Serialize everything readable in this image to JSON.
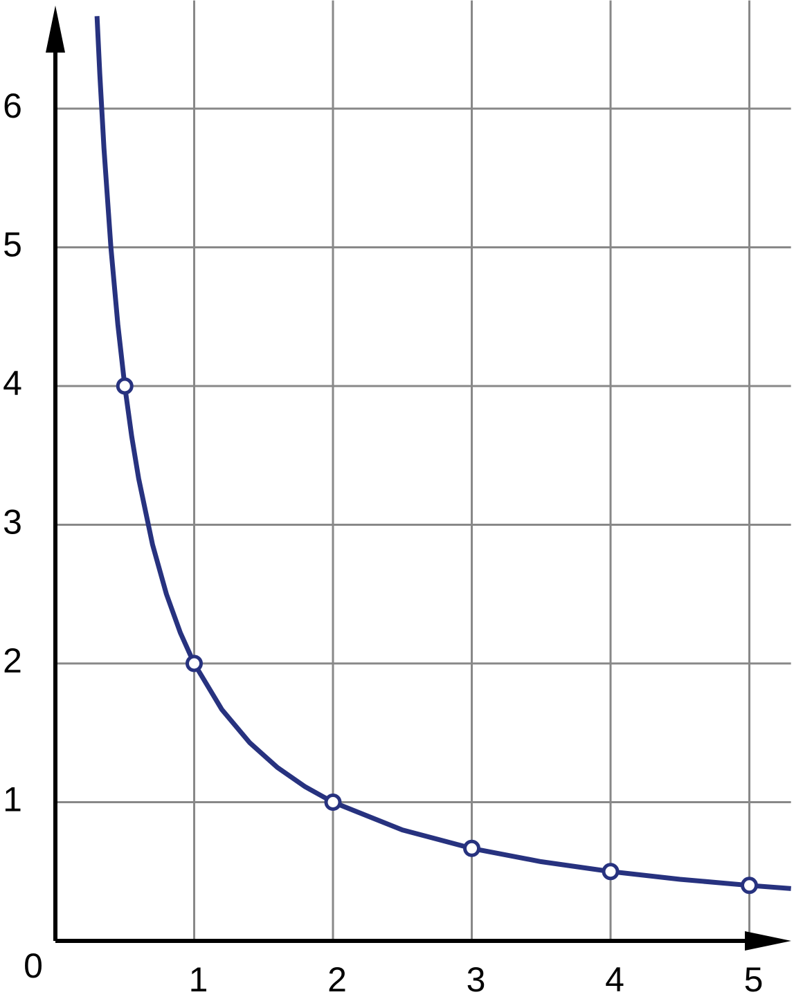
{
  "chart_data": {
    "type": "line",
    "xlim": [
      0,
      5.3
    ],
    "ylim": [
      0,
      6.78
    ],
    "xticks": [
      0,
      1,
      2,
      3,
      4,
      5
    ],
    "yticks": [
      1,
      2,
      3,
      4,
      5,
      6
    ],
    "grid": true,
    "series": [
      {
        "color": "#27327f",
        "markers": false,
        "x": [
          0.3,
          0.32,
          0.35,
          0.4,
          0.45,
          0.5,
          0.55,
          0.6,
          0.7,
          0.8,
          0.9,
          1,
          1.2,
          1.4,
          1.6,
          1.8,
          2,
          2.5,
          3,
          3.5,
          4,
          4.5,
          5,
          5.3
        ],
        "values": [
          6.667,
          6.25,
          5.714,
          5,
          4.444,
          4,
          3.636,
          3.333,
          2.857,
          2.5,
          2.222,
          2,
          1.667,
          1.429,
          1.25,
          1.111,
          1,
          0.8,
          0.667,
          0.571,
          0.5,
          0.444,
          0.4,
          0.377
        ]
      },
      {
        "color": "#27327f",
        "markers": true,
        "x": [
          0.5,
          1,
          2,
          3,
          4,
          5
        ],
        "values": [
          4,
          2,
          1,
          0.667,
          0.5,
          0.4
        ]
      }
    ]
  }
}
